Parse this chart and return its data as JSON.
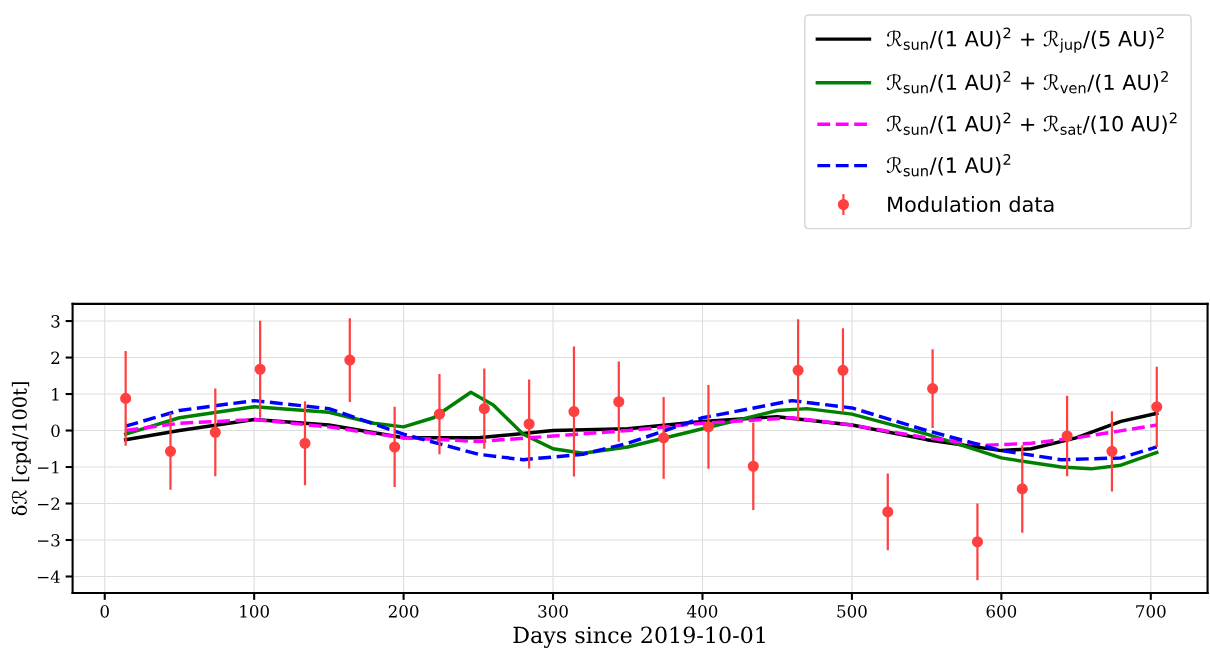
{
  "chart_data": {
    "type": "line",
    "xlabel": "Days since 2019-10-01",
    "ylabel": "δℛ [cpd/100t]",
    "xlim": [
      -21.5,
      738
    ],
    "xticks": [
      0,
      100,
      200,
      300,
      400,
      500,
      600,
      700
    ],
    "ylim": [
      -4.45,
      3.47
    ],
    "yticks": [
      {
        "value": -4,
        "label": "−4"
      },
      {
        "value": -3,
        "label": "−3"
      },
      {
        "value": -2,
        "label": "−2"
      },
      {
        "value": -1,
        "label": "−1"
      },
      0,
      1,
      2,
      3
    ],
    "grid": true,
    "legend": "top right",
    "series": [
      {
        "name": "ℛ$_{sun}$/(1 AU)$^{2}$ + ℛ$_{jup}$/(5 AU)$^{2}$",
        "color": "#000000",
        "line_style": "solid",
        "x": [
          14,
          50,
          100,
          150,
          200,
          250,
          300,
          350,
          400,
          450,
          500,
          550,
          600,
          620,
          650,
          680,
          704
        ],
        "values": [
          -0.25,
          0.0,
          0.3,
          0.15,
          -0.2,
          -0.2,
          0.0,
          0.05,
          0.25,
          0.38,
          0.15,
          -0.25,
          -0.55,
          -0.5,
          -0.2,
          0.25,
          0.47
        ]
      },
      {
        "name": "ℛ$_{sun}$/(1 AU)$^{2}$ + ℛ$_{ven}$/(1 AU)$^{2}$",
        "color": "#008000",
        "line_style": "solid",
        "x": [
          14,
          50,
          100,
          150,
          180,
          200,
          220,
          245,
          260,
          280,
          300,
          320,
          350,
          400,
          450,
          470,
          500,
          550,
          600,
          640,
          660,
          680,
          704
        ],
        "values": [
          -0.1,
          0.35,
          0.65,
          0.5,
          0.2,
          0.1,
          0.35,
          1.05,
          0.7,
          -0.1,
          -0.5,
          -0.62,
          -0.45,
          0.05,
          0.55,
          0.6,
          0.45,
          -0.1,
          -0.75,
          -1.0,
          -1.05,
          -0.95,
          -0.6
        ]
      },
      {
        "name": "ℛ$_{sun}$/(1 AU)$^{2}$ + ℛ$_{sat}$/(10 AU)$^{2}$",
        "color": "#ff00ff",
        "line_style": "dashed",
        "x": [
          14,
          50,
          100,
          150,
          200,
          250,
          300,
          350,
          400,
          460,
          500,
          550,
          590,
          620,
          650,
          704
        ],
        "values": [
          0.0,
          0.2,
          0.3,
          0.1,
          -0.2,
          -0.3,
          -0.15,
          0.0,
          0.2,
          0.35,
          0.15,
          -0.2,
          -0.4,
          -0.35,
          -0.2,
          0.15
        ]
      },
      {
        "name": "ℛ$_{sun}$/(1 AU)$^{2}$",
        "color": "#0000ff",
        "line_style": "dashed",
        "x": [
          14,
          50,
          100,
          150,
          200,
          250,
          280,
          320,
          350,
          400,
          460,
          500,
          550,
          600,
          640,
          680,
          704
        ],
        "values": [
          0.12,
          0.55,
          0.82,
          0.6,
          -0.1,
          -0.65,
          -0.8,
          -0.65,
          -0.35,
          0.35,
          0.82,
          0.62,
          0.0,
          -0.55,
          -0.8,
          -0.75,
          -0.45
        ]
      },
      {
        "name": "Modulation data",
        "type": "scatter",
        "marker": "circle",
        "color": "#ff4040",
        "x": [
          14,
          44,
          74,
          104,
          134,
          164,
          194,
          224,
          254,
          284,
          314,
          344,
          374,
          404,
          434,
          464,
          494,
          524,
          554,
          584,
          614,
          644,
          674,
          704
        ],
        "values": [
          0.88,
          -0.57,
          -0.05,
          1.68,
          -0.35,
          1.93,
          -0.45,
          0.45,
          0.6,
          0.18,
          0.52,
          0.79,
          -0.2,
          0.1,
          -0.98,
          1.65,
          1.65,
          -2.23,
          1.15,
          -3.05,
          -1.6,
          -0.15,
          -0.57,
          0.65
        ],
        "errors": [
          1.3,
          1.05,
          1.2,
          1.33,
          1.15,
          1.15,
          1.1,
          1.1,
          1.1,
          1.22,
          1.78,
          1.1,
          1.12,
          1.15,
          1.2,
          1.4,
          1.15,
          1.05,
          1.08,
          1.05,
          1.2,
          1.1,
          1.1,
          1.1
        ]
      }
    ]
  }
}
